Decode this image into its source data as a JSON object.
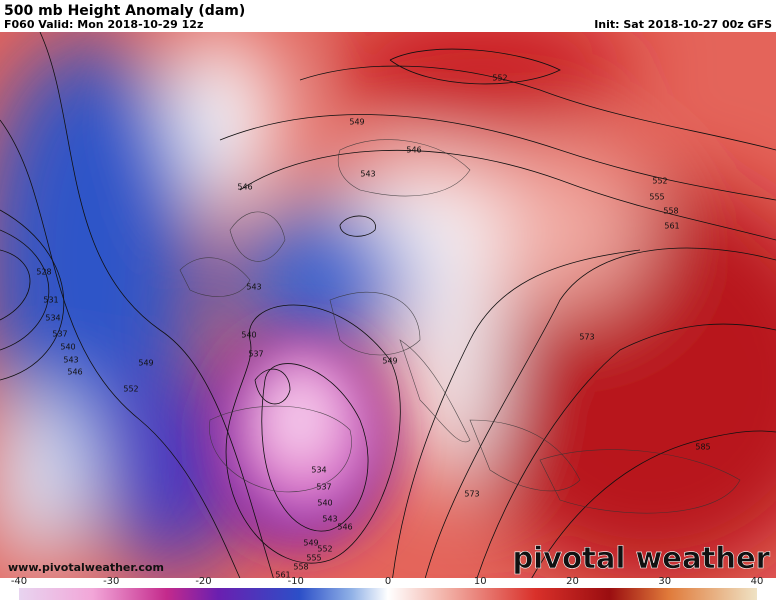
{
  "header": {
    "title": "500 mb Height Anomaly (dam)",
    "valid": "F060 Valid: Mon 2018-10-29 12z",
    "init": "Init: Sat 2018-10-27 00z GFS"
  },
  "map": {
    "contour_labels": [
      "552",
      "549",
      "546",
      "546",
      "543",
      "552",
      "555",
      "558",
      "561",
      "528",
      "531",
      "534",
      "537",
      "540",
      "543",
      "546",
      "549",
      "552",
      "543",
      "540",
      "537",
      "549",
      "573",
      "534",
      "537",
      "540",
      "543",
      "546",
      "549",
      "552",
      "555",
      "558",
      "561",
      "573",
      "585"
    ],
    "watermark": "www.pivotalweather.com",
    "logo": "pivotal weather"
  },
  "colorbar": {
    "ticks": [
      -40,
      -30,
      -20,
      -10,
      0,
      10,
      20,
      30,
      40
    ]
  }
}
